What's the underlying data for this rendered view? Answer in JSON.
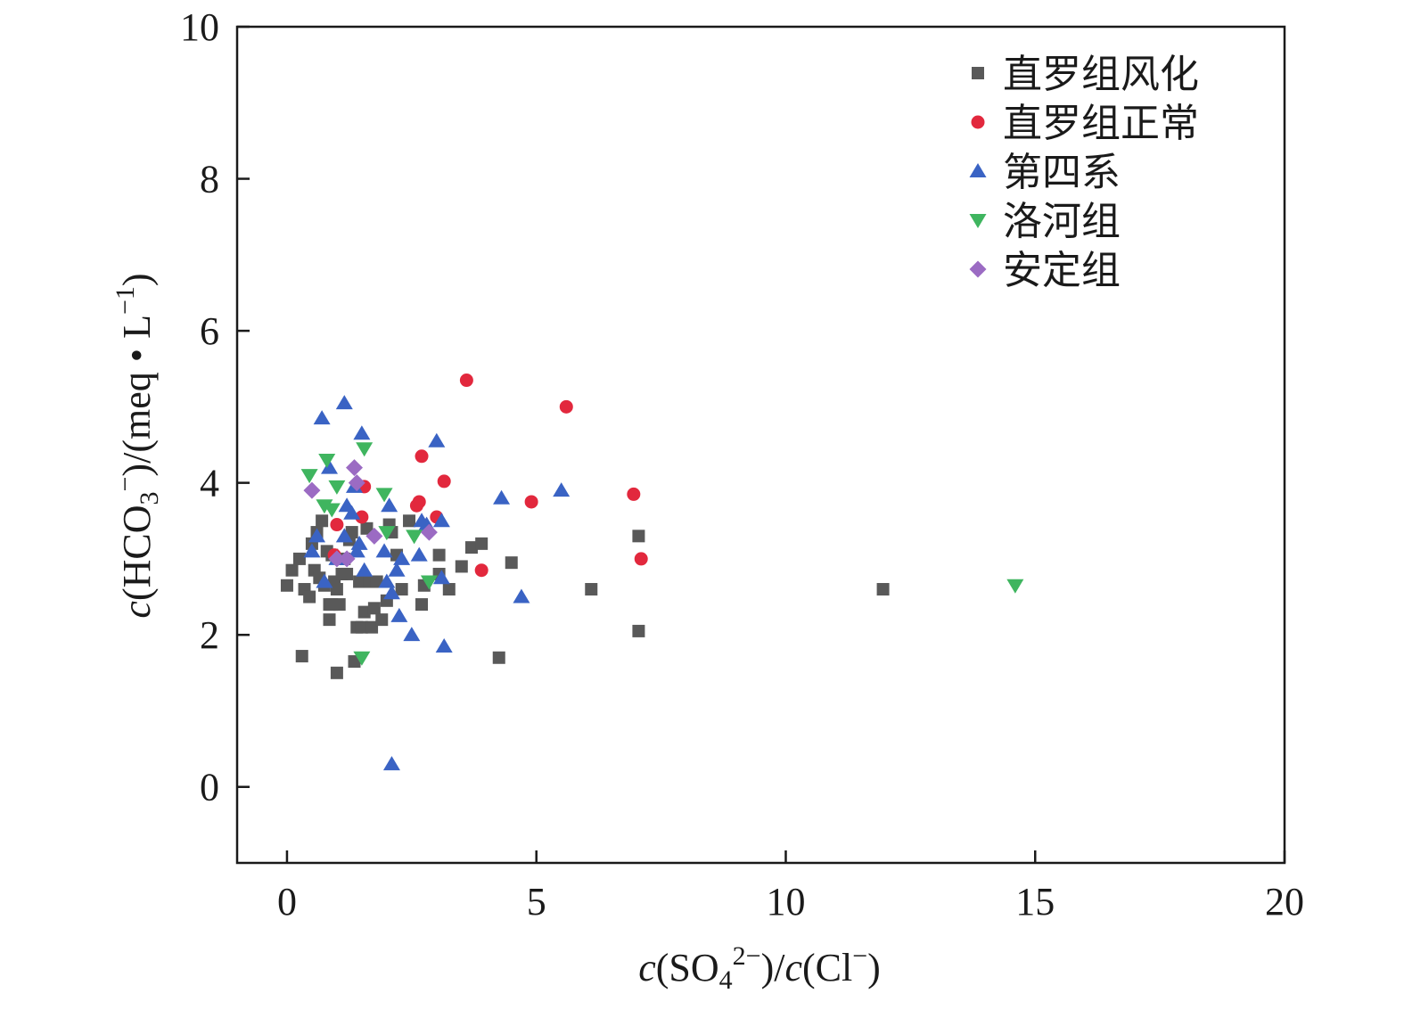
{
  "chart_data": {
    "type": "scatter",
    "xlim": [
      -1,
      20
    ],
    "ylim": [
      -1,
      10
    ],
    "x_ticks": [
      0,
      5,
      10,
      15,
      20
    ],
    "y_ticks": [
      0,
      2,
      4,
      6,
      8,
      10
    ],
    "x_tick_labels": [
      "0",
      "5",
      "10",
      "15",
      "20"
    ],
    "y_tick_labels": [
      "0",
      "2",
      "4",
      "6",
      "8",
      "10"
    ],
    "xlabel": {
      "c1": "c",
      "p1": "(SO",
      "sub": "4",
      "sup": "2−",
      "p2": ")/",
      "c2": "c",
      "p3": "(Cl",
      "sup2": "−",
      "p4": ")"
    },
    "ylabel": {
      "c": "c",
      "p1": "(HCO",
      "sub": "3",
      "sup": "−",
      "p2": ")/(meq • L",
      "sup2": "−1",
      "p3": ")"
    },
    "grid": false,
    "legend_position": "top-right",
    "series": [
      {
        "name": "直罗组风化",
        "marker": "square",
        "color": "#595959",
        "points": [
          [
            0.0,
            2.65
          ],
          [
            0.1,
            2.85
          ],
          [
            0.25,
            3.0
          ],
          [
            0.3,
            1.72
          ],
          [
            0.35,
            2.6
          ],
          [
            0.45,
            2.5
          ],
          [
            0.5,
            3.2
          ],
          [
            0.55,
            2.85
          ],
          [
            0.6,
            3.35
          ],
          [
            0.65,
            2.75
          ],
          [
            0.7,
            3.5
          ],
          [
            0.75,
            2.65
          ],
          [
            0.8,
            3.1
          ],
          [
            0.85,
            2.4
          ],
          [
            0.85,
            2.2
          ],
          [
            0.9,
            3.05
          ],
          [
            0.9,
            2.4
          ],
          [
            0.95,
            2.7
          ],
          [
            1.0,
            2.6
          ],
          [
            1.0,
            1.5
          ],
          [
            1.05,
            2.4
          ],
          [
            1.1,
            2.8
          ],
          [
            1.15,
            3.0
          ],
          [
            1.2,
            2.8
          ],
          [
            1.25,
            3.25
          ],
          [
            1.3,
            3.35
          ],
          [
            1.35,
            1.65
          ],
          [
            1.4,
            2.1
          ],
          [
            1.45,
            2.7
          ],
          [
            1.5,
            2.1
          ],
          [
            1.55,
            2.3
          ],
          [
            1.6,
            3.4
          ],
          [
            1.65,
            2.7
          ],
          [
            1.7,
            2.1
          ],
          [
            1.75,
            2.35
          ],
          [
            1.8,
            2.7
          ],
          [
            1.9,
            2.2
          ],
          [
            2.0,
            2.45
          ],
          [
            2.05,
            3.45
          ],
          [
            2.1,
            3.35
          ],
          [
            2.2,
            3.05
          ],
          [
            2.3,
            2.6
          ],
          [
            2.45,
            3.5
          ],
          [
            2.7,
            2.4
          ],
          [
            2.75,
            2.65
          ],
          [
            3.05,
            3.05
          ],
          [
            3.05,
            2.8
          ],
          [
            3.25,
            2.6
          ],
          [
            3.5,
            2.9
          ],
          [
            3.7,
            3.15
          ],
          [
            3.9,
            3.2
          ],
          [
            4.25,
            1.7
          ],
          [
            4.5,
            2.95
          ],
          [
            6.1,
            2.6
          ],
          [
            7.05,
            3.3
          ],
          [
            7.05,
            2.05
          ],
          [
            11.95,
            2.6
          ]
        ]
      },
      {
        "name": "直罗组正常",
        "marker": "circle",
        "color": "#e2283d",
        "points": [
          [
            0.95,
            3.05
          ],
          [
            1.0,
            3.45
          ],
          [
            1.5,
            3.55
          ],
          [
            1.55,
            3.95
          ],
          [
            2.6,
            3.7
          ],
          [
            2.65,
            3.75
          ],
          [
            2.7,
            4.35
          ],
          [
            3.0,
            3.55
          ],
          [
            3.15,
            4.02
          ],
          [
            3.6,
            5.35
          ],
          [
            3.9,
            2.85
          ],
          [
            4.9,
            3.75
          ],
          [
            5.6,
            5.0
          ],
          [
            6.95,
            3.85
          ],
          [
            7.1,
            3.0
          ]
        ]
      },
      {
        "name": "第四系",
        "marker": "triangle-up",
        "color": "#3a63c4",
        "points": [
          [
            0.5,
            3.1
          ],
          [
            0.6,
            3.3
          ],
          [
            0.7,
            4.85
          ],
          [
            0.75,
            2.7
          ],
          [
            0.85,
            4.2
          ],
          [
            1.0,
            3.0
          ],
          [
            1.15,
            3.3
          ],
          [
            1.15,
            5.05
          ],
          [
            1.2,
            3.7
          ],
          [
            1.3,
            3.6
          ],
          [
            1.35,
            3.95
          ],
          [
            1.4,
            3.1
          ],
          [
            1.45,
            3.2
          ],
          [
            1.5,
            4.65
          ],
          [
            1.55,
            2.85
          ],
          [
            1.95,
            3.1
          ],
          [
            2.0,
            2.7
          ],
          [
            2.05,
            3.7
          ],
          [
            2.1,
            2.55
          ],
          [
            2.1,
            0.3
          ],
          [
            2.2,
            2.85
          ],
          [
            2.25,
            2.25
          ],
          [
            2.3,
            3.0
          ],
          [
            2.5,
            2.0
          ],
          [
            2.65,
            3.05
          ],
          [
            2.7,
            3.5
          ],
          [
            2.8,
            3.45
          ],
          [
            3.0,
            4.55
          ],
          [
            3.1,
            3.5
          ],
          [
            3.1,
            2.75
          ],
          [
            3.15,
            1.85
          ],
          [
            4.3,
            3.8
          ],
          [
            4.7,
            2.5
          ],
          [
            5.5,
            3.9
          ]
        ]
      },
      {
        "name": "洛河组",
        "marker": "triangle-down",
        "color": "#3fb55f",
        "points": [
          [
            0.45,
            4.1
          ],
          [
            0.75,
            3.7
          ],
          [
            0.8,
            4.3
          ],
          [
            0.9,
            3.65
          ],
          [
            1.0,
            3.95
          ],
          [
            1.5,
            1.7
          ],
          [
            1.55,
            4.45
          ],
          [
            1.95,
            3.85
          ],
          [
            2.0,
            3.35
          ],
          [
            2.55,
            3.3
          ],
          [
            2.85,
            2.7
          ],
          [
            14.6,
            2.65
          ]
        ]
      },
      {
        "name": "安定组",
        "marker": "diamond",
        "color": "#9b6bc3",
        "points": [
          [
            0.5,
            3.9
          ],
          [
            1.0,
            3.0
          ],
          [
            1.2,
            3.0
          ],
          [
            1.35,
            4.2
          ],
          [
            1.4,
            4.0
          ],
          [
            1.75,
            3.3
          ],
          [
            2.85,
            3.35
          ]
        ]
      }
    ]
  }
}
